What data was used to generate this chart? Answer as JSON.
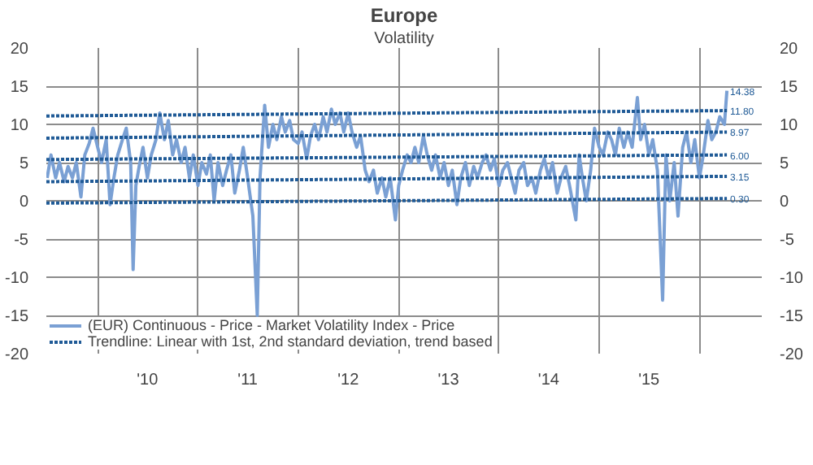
{
  "chart_data": {
    "type": "line",
    "title": "Europe",
    "subtitle": "Volatility",
    "x": [
      "2009-07-01",
      "2009-07-15",
      "2009-08-01",
      "2009-08-15",
      "2009-09-01",
      "2009-09-15",
      "2009-10-01",
      "2009-10-15",
      "2009-11-01",
      "2009-11-15",
      "2009-12-01",
      "2009-12-15",
      "2010-01-01",
      "2010-01-15",
      "2010-02-01",
      "2010-02-15",
      "2010-03-01",
      "2010-03-15",
      "2010-04-01",
      "2010-04-15",
      "2010-05-01",
      "2010-05-10",
      "2010-05-20",
      "2010-06-01",
      "2010-06-15",
      "2010-07-01",
      "2010-07-15",
      "2010-08-01",
      "2010-08-15",
      "2010-09-01",
      "2010-09-15",
      "2010-10-01",
      "2010-10-15",
      "2010-11-01",
      "2010-11-15",
      "2010-12-01",
      "2010-12-15",
      "2011-01-01",
      "2011-01-15",
      "2011-02-01",
      "2011-02-15",
      "2011-03-01",
      "2011-03-15",
      "2011-04-01",
      "2011-04-15",
      "2011-05-01",
      "2011-05-15",
      "2011-06-01",
      "2011-06-15",
      "2011-07-01",
      "2011-07-20",
      "2011-08-05",
      "2011-08-15",
      "2011-09-01",
      "2011-09-15",
      "2011-10-01",
      "2011-10-15",
      "2011-11-01",
      "2011-11-15",
      "2011-12-01",
      "2011-12-15",
      "2012-01-01",
      "2012-01-15",
      "2012-02-01",
      "2012-02-15",
      "2012-03-01",
      "2012-03-15",
      "2012-04-01",
      "2012-04-15",
      "2012-05-01",
      "2012-05-15",
      "2012-06-01",
      "2012-06-15",
      "2012-07-01",
      "2012-07-15",
      "2012-08-01",
      "2012-08-15",
      "2012-09-01",
      "2012-09-15",
      "2012-10-01",
      "2012-10-15",
      "2012-11-01",
      "2012-11-15",
      "2012-12-01",
      "2012-12-20",
      "2013-01-01",
      "2013-01-15",
      "2013-02-01",
      "2013-02-15",
      "2013-03-01",
      "2013-03-15",
      "2013-04-01",
      "2013-04-15",
      "2013-05-01",
      "2013-05-15",
      "2013-06-01",
      "2013-06-15",
      "2013-07-01",
      "2013-07-15",
      "2013-08-01",
      "2013-08-15",
      "2013-09-01",
      "2013-09-15",
      "2013-10-01",
      "2013-10-15",
      "2013-11-01",
      "2013-11-15",
      "2013-12-01",
      "2013-12-15",
      "2014-01-01",
      "2014-01-15",
      "2014-02-01",
      "2014-02-15",
      "2014-03-01",
      "2014-03-15",
      "2014-04-01",
      "2014-04-15",
      "2014-05-01",
      "2014-05-15",
      "2014-06-01",
      "2014-06-15",
      "2014-07-01",
      "2014-07-15",
      "2014-08-01",
      "2014-08-15",
      "2014-09-01",
      "2014-09-15",
      "2014-10-08",
      "2014-10-20",
      "2014-11-01",
      "2014-11-15",
      "2014-12-01",
      "2014-12-15",
      "2015-01-01",
      "2015-01-15",
      "2015-02-01",
      "2015-02-15",
      "2015-03-01",
      "2015-03-15",
      "2015-04-01",
      "2015-04-15",
      "2015-05-01",
      "2015-05-20",
      "2015-06-01",
      "2015-06-15",
      "2015-07-01",
      "2015-07-15",
      "2015-08-01",
      "2015-08-20",
      "2015-09-01",
      "2015-09-15",
      "2015-10-01",
      "2015-10-15",
      "2015-11-01",
      "2015-11-15",
      "2015-12-01",
      "2015-12-15",
      "2016-01-01",
      "2016-01-15",
      "2016-02-01",
      "2016-02-15",
      "2016-03-01",
      "2016-03-15",
      "2016-04-01",
      "2016-04-10"
    ],
    "series": [
      {
        "name": "(EUR) Continuous - Price - Market Volatility Index - Price",
        "color": "#7aa0d4",
        "values": [
          3,
          6,
          3,
          5,
          2.5,
          4.5,
          3,
          5,
          0.5,
          6,
          7.5,
          9.5,
          7,
          5,
          8,
          -0.5,
          3,
          6,
          8,
          9.5,
          5,
          -9,
          2,
          4.5,
          7,
          3,
          6,
          8,
          11.5,
          8,
          10.5,
          6,
          8,
          5,
          7,
          3,
          6,
          2,
          5,
          3.5,
          6,
          0,
          5,
          2,
          4,
          6,
          1,
          4,
          7,
          3,
          -2,
          -15,
          3,
          12.5,
          7,
          10,
          8,
          11,
          9,
          10.5,
          8,
          7.5,
          9,
          5.5,
          8.5,
          10,
          8,
          11,
          9,
          12,
          10,
          11.5,
          9,
          11.5,
          9,
          7,
          8.5,
          4,
          2.5,
          4,
          1,
          3,
          0.5,
          3,
          -2.5,
          2,
          4,
          6,
          5,
          7,
          5,
          8.5,
          6,
          4,
          6,
          3,
          5,
          2,
          4,
          -0.5,
          3,
          5,
          2,
          4.5,
          3,
          5,
          6,
          4,
          5.5,
          2,
          4,
          5,
          3,
          1,
          4,
          5,
          2,
          3,
          1,
          4,
          5.5,
          3,
          5,
          1,
          3,
          4.5,
          2,
          -2.5,
          6,
          3,
          0,
          4,
          9.5,
          7,
          6,
          9,
          8,
          6,
          9.5,
          7,
          9,
          7,
          13.5,
          8,
          10,
          6,
          8,
          4,
          -13,
          6,
          0,
          5,
          -2,
          7,
          9,
          5,
          8,
          3,
          6,
          10.5,
          8,
          9,
          11,
          10,
          14.4
        ]
      },
      {
        "type": "line",
        "name": "Trendline: Linear with 1st, 2nd standard deviation, trend based",
        "color": "#1f5a96",
        "line_style": "dotted",
        "x": [
          "2009-06-28",
          "2016-04-10"
        ],
        "values": [
          11.1,
          11.8
        ]
      },
      {
        "type": "line",
        "color": "#1f5a96",
        "line_style": "dotted",
        "x": [
          "2009-06-28",
          "2016-04-10"
        ],
        "values": [
          8.2,
          9.0
        ]
      },
      {
        "type": "line",
        "color": "#1f5a96",
        "line_style": "dotted",
        "x": [
          "2009-06-28",
          "2016-04-10"
        ],
        "values": [
          5.4,
          6.0
        ]
      },
      {
        "type": "line",
        "color": "#1f5a96",
        "line_style": "dotted",
        "x": [
          "2009-06-28",
          "2016-04-10"
        ],
        "values": [
          2.5,
          3.2
        ]
      },
      {
        "type": "line",
        "color": "#1f5a96",
        "line_style": "dotted",
        "x": [
          "2009-06-28",
          "2016-04-10"
        ],
        "values": [
          -0.3,
          0.3
        ]
      }
    ],
    "annotations": [
      {
        "text": "14.38",
        "x": "2016-04-10",
        "y": 14.4
      },
      {
        "text": "11.80",
        "x": "2016-04-10",
        "y": 11.8
      },
      {
        "text": "8.97",
        "x": "2016-04-10",
        "y": 9.0
      },
      {
        "text": "6.00",
        "x": "2016-04-10",
        "y": 6.0
      },
      {
        "text": "3.15",
        "x": "2016-04-10",
        "y": 3.2
      },
      {
        "text": "0.30",
        "x": "2016-04-10",
        "y": 0.3
      }
    ],
    "xlim": [
      "2009-06-28",
      "2016-08-15"
    ],
    "xticks": [
      {
        "value": "2010-01-01",
        "label": null
      },
      {
        "value": "2010-07-01",
        "label": "'10"
      },
      {
        "value": "2011-01-01",
        "label": null
      },
      {
        "value": "2011-07-01",
        "label": "'11"
      },
      {
        "value": "2012-01-01",
        "label": null
      },
      {
        "value": "2012-07-01",
        "label": "'12"
      },
      {
        "value": "2013-01-01",
        "label": null
      },
      {
        "value": "2013-07-01",
        "label": "'13"
      },
      {
        "value": "2014-01-01",
        "label": null
      },
      {
        "value": "2014-07-01",
        "label": "'14"
      },
      {
        "value": "2015-01-01",
        "label": null
      },
      {
        "value": "2015-07-01",
        "label": "'15"
      },
      {
        "value": "2016-01-01",
        "label": null
      }
    ],
    "ylim": [
      -20,
      20
    ],
    "yticks": [
      -20,
      -15,
      -10,
      -5,
      0,
      5,
      10,
      15,
      20
    ],
    "y2lim": [
      -20,
      20
    ],
    "y2ticks": [
      -20,
      -15,
      -10,
      -5,
      0,
      5,
      10,
      15,
      20
    ],
    "grid": true,
    "legend": "bottom",
    "line_style": "solid",
    "marker": "none"
  }
}
